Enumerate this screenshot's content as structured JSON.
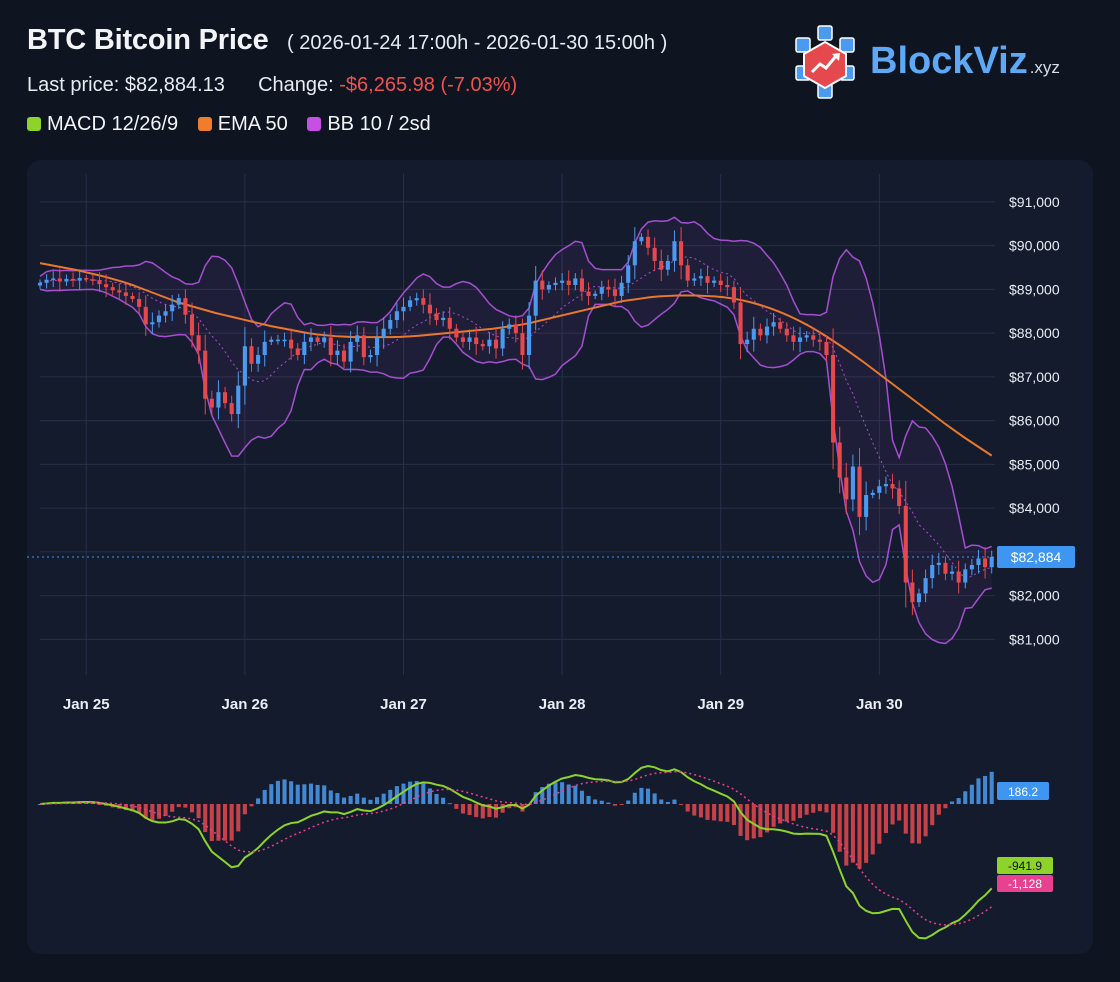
{
  "header": {
    "title": "BTC Bitcoin Price",
    "range": "( 2026-01-24 17:00h - 2026-01-30 15:00h )",
    "last_price_label": "Last price:",
    "last_price": "$82,884.13",
    "change_label": "Change:",
    "change": "-$6,265.98 (-7.03%)"
  },
  "legend": [
    {
      "label": "MACD 12/26/9",
      "color": "#8ed32a"
    },
    {
      "label": "EMA 50",
      "color": "#f07d2c"
    },
    {
      "label": "BB 10 / 2sd",
      "color": "#c64fe6"
    }
  ],
  "logo": {
    "name": "BlockViz",
    "suffix": ".xyz"
  },
  "colors": {
    "up": "#4a9bf0",
    "down": "#e5484d",
    "ema": "#e8782d",
    "bb": "#a54fd0",
    "macd": "#8ed32a",
    "signal": "#e8418f",
    "grid": "#263048",
    "axis_text": "#e9edf5",
    "price_tag": "#3f96f2"
  },
  "chart_data": [
    {
      "type": "candlestick",
      "series_note": "BTC/USD hourly OHLC",
      "x_labels": [
        "Jan 25",
        "Jan 26",
        "Jan 27",
        "Jan 28",
        "Jan 29",
        "Jan 30"
      ],
      "x_label_hours": [
        7,
        31,
        55,
        79,
        103,
        127
      ],
      "y_ticks": [
        "$91,000",
        "$90,000",
        "$89,000",
        "$88,000",
        "$87,000",
        "$86,000",
        "$85,000",
        "$84,000",
        "$83,000",
        "$82,000",
        "$81,000"
      ],
      "y_tick_values": [
        91000,
        90000,
        89000,
        88000,
        87000,
        86000,
        85000,
        84000,
        83000,
        82000,
        81000
      ],
      "ylim": [
        80300,
        91500
      ],
      "last_price_value": 82884,
      "last_price_tag": "$82,884",
      "close": [
        89150,
        89220,
        89250,
        89180,
        89240,
        89200,
        89260,
        89230,
        89210,
        89120,
        89050,
        88980,
        88930,
        88850,
        88780,
        88600,
        88200,
        88250,
        88400,
        88500,
        88650,
        88800,
        88420,
        87950,
        87600,
        86500,
        86300,
        86650,
        86400,
        86150,
        86800,
        87700,
        87300,
        87500,
        87800,
        87850,
        87850,
        87850,
        87650,
        87500,
        87800,
        87900,
        87800,
        87900,
        87500,
        87600,
        87350,
        87800,
        87950,
        87450,
        87500,
        87900,
        88100,
        88300,
        88500,
        88600,
        88750,
        88800,
        88650,
        88450,
        88300,
        88350,
        88100,
        87900,
        87800,
        87900,
        87750,
        87700,
        87850,
        87650,
        88100,
        88200,
        88000,
        87500,
        88400,
        89200,
        89000,
        89100,
        89150,
        89200,
        89100,
        89250,
        88950,
        88850,
        88900,
        89050,
        89000,
        88850,
        89150,
        89550,
        90100,
        90200,
        89950,
        89650,
        89450,
        89650,
        90100,
        89550,
        89200,
        89250,
        89300,
        89150,
        89200,
        89100,
        89050,
        88700,
        87750,
        87850,
        88100,
        87950,
        88150,
        88250,
        88100,
        87950,
        87800,
        87900,
        87950,
        87850,
        87800,
        87500,
        85500,
        84700,
        84200,
        84950,
        83800,
        84300,
        84350,
        84500,
        84550,
        84450,
        84050,
        82300,
        81850,
        82050,
        82400,
        82700,
        82750,
        82500,
        82550,
        82300,
        82600,
        82700,
        82850,
        82650,
        82884
      ]
    },
    {
      "type": "line",
      "name": "EMA 50",
      "values": [
        89600,
        89560,
        89520,
        89480,
        89440,
        89390,
        89340,
        89290,
        89230,
        89170,
        89100,
        89020,
        88940,
        88860,
        88780,
        88700,
        88640,
        88580,
        88520,
        88460,
        88410,
        88360,
        88310,
        88260,
        88210,
        88160,
        88120,
        88080,
        88040,
        88000,
        87970,
        87950,
        87930,
        87920,
        87910,
        87910,
        87910,
        87910,
        87910,
        87915,
        87925,
        87940,
        87960,
        87980,
        88000,
        88020,
        88040,
        88060,
        88080,
        88100,
        88130,
        88160,
        88190,
        88230,
        88280,
        88330,
        88380,
        88430,
        88480,
        88530,
        88580,
        88630,
        88680,
        88730,
        88760,
        88790,
        88820,
        88840,
        88850,
        88860,
        88860,
        88860,
        88850,
        88840,
        88820,
        88790,
        88750,
        88700,
        88640,
        88570,
        88490,
        88400,
        88300,
        88190,
        88070,
        87940,
        87800,
        87660,
        87510,
        87360,
        87200,
        87040,
        86880,
        86720,
        86560,
        86400,
        86240,
        86080,
        85920,
        85770,
        85620,
        85480,
        85340,
        85200
      ],
      "start_hour": 0,
      "note": "piecewise, sampled per hour segment; rendered with the candles"
    },
    {
      "type": "histogram",
      "name": "MACD 12/26/9",
      "histogram_last": "186.2",
      "macd_last": "-941.9",
      "signal_last": "-1,128"
    }
  ]
}
